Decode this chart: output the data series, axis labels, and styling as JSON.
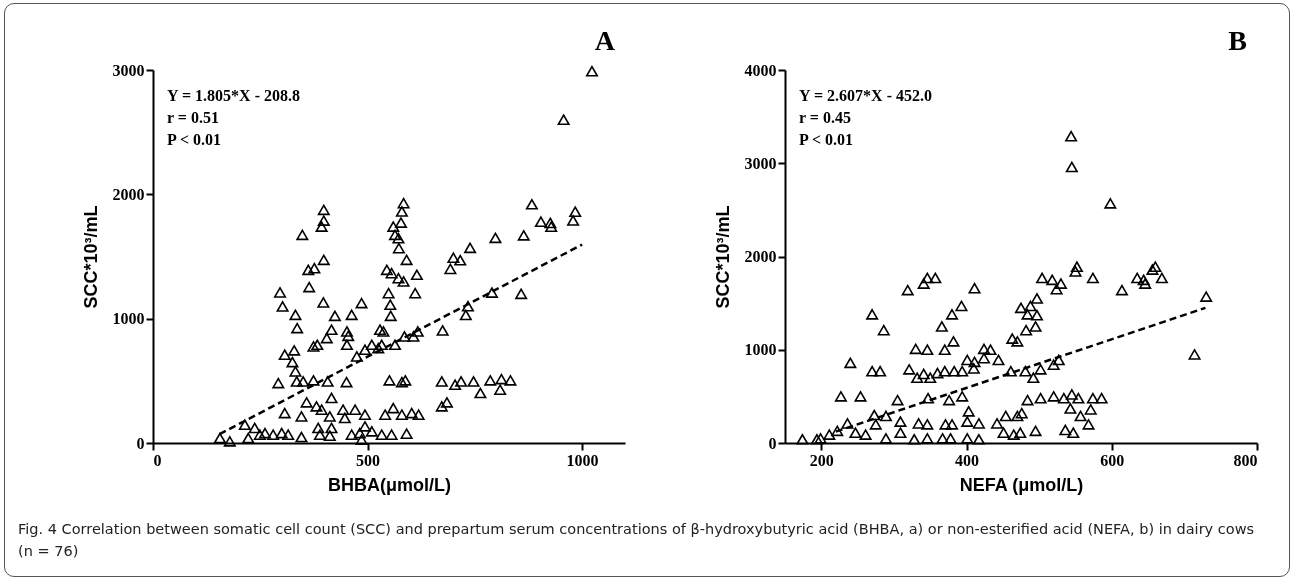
{
  "chart_data": [
    {
      "type": "scatter",
      "xlabel": "BHBA(μmol/L)",
      "ylabel": "SCC*10³/mL",
      "xlim": [
        0,
        1100
      ],
      "xticks": [
        0,
        500,
        1000
      ],
      "ylim": [
        0,
        3000
      ],
      "yticks": [
        0,
        1000,
        2000,
        3000
      ],
      "annotations": [
        "A",
        "Y = 1.805*X - 208.8",
        "r = 0.51",
        "P < 0.01",
        "Fig. 4 Correlation between somatic cell count (SCC) and prepartum serum concentrations of β-hydroxybutyric acid (BHBA, a) or non-esterified acid (NEFA, b) in dairy cows (n = 76)"
      ],
      "series": [
        {
          "type": "scatter",
          "marker": "triangle",
          "color": "#000000",
          "x": [
            1023,
            957,
            883,
            984,
            979,
            904,
            926,
            928,
            864,
            798,
            739,
            700,
            716,
            693,
            858,
            790,
            734,
            729,
            675,
            617,
            607,
            586,
            564,
            611,
            615,
            591,
            572,
            584,
            573,
            572,
            578,
            580,
            584,
            560,
            564,
            545,
            556,
            549,
            553,
            554,
            529,
            537,
            486,
            463,
            424,
            452,
            455,
            452,
            416,
            405,
            397,
            364,
            362,
            376,
            398,
            348,
            393,
            398,
            398,
            296,
            302,
            332,
            336,
            374,
            383,
            307,
            329,
            325,
            332,
            292,
            335,
            350,
            374,
            407,
            451,
            475,
            494,
            510,
            525,
            533,
            551,
            580,
            588,
            673,
            704,
            718,
            747,
            763,
            786,
            809,
            812,
            833,
            673,
            685,
            307,
            358,
            346,
            381,
            393,
            416,
            412,
            443,
            471,
            494,
            447,
            541,
            560,
            580,
            603,
            619,
            214,
            237,
            261,
            300,
            156,
            179,
            222,
            280,
            315,
            346,
            385,
            389,
            412,
            416,
            463,
            482,
            494,
            510,
            486,
            533,
            556,
            591,
            249
          ],
          "values": [
            2990,
            2600,
            1920,
            1860,
            1790,
            1780,
            1770,
            1740,
            1670,
            1650,
            1570,
            1490,
            1470,
            1400,
            1200,
            1210,
            1100,
            1030,
            905,
            897,
            857,
            857,
            790,
            1205,
            1353,
            1473,
            1326,
            1299,
            1567,
            1647,
            1773,
            1862,
            1929,
            1741,
            1674,
            1393,
            1366,
            1205,
            1112,
            1023,
            911,
            897,
            1125,
            1031,
            1023,
            897,
            862,
            790,
            911,
            844,
            1130,
            1254,
            1393,
            1406,
            1473,
            1674,
            1741,
            1789,
            1875,
            1211,
            1098,
            1031,
            924,
            777,
            790,
            710,
            745,
            651,
            576,
            482,
            495,
            495,
            504,
            495,
            490,
            696,
            750,
            790,
            763,
            790,
            504,
            490,
            504,
            495,
            469,
            495,
            495,
            402,
            504,
            429,
            514,
            504,
            295,
            327,
            241,
            327,
            214,
            295,
            268,
            362,
            214,
            268,
            268,
            228,
            201,
            228,
            281,
            228,
            241,
            228,
            147,
            121,
            80,
            80,
            40,
            13,
            40,
            67,
            67,
            48,
            121,
            67,
            59,
            121,
            67,
            80,
            134,
            94,
            27,
            67,
            67,
            75,
            67
          ]
        },
        {
          "type": "line",
          "color": "#000000",
          "line_style": "dashed",
          "x": [
            155,
            1000
          ],
          "values": [
            71,
            1596
          ]
        }
      ]
    },
    {
      "type": "scatter",
      "xlabel": "NEFA (μmol/L)",
      "ylabel": "SCC*10³/mL",
      "xlim": [
        150,
        800
      ],
      "xticks": [
        200,
        400,
        600,
        800
      ],
      "ylim": [
        0,
        4000
      ],
      "yticks": [
        0,
        1000,
        2000,
        3000,
        4000
      ],
      "annotations": [
        "B",
        "Y = 2.607*X - 452.0",
        "r = 0.45",
        "P < 0.01"
      ],
      "series": [
        {
          "type": "scatter",
          "marker": "triangle",
          "color": "#000000",
          "x": [
            544,
            545,
            598,
            730,
            714,
            660,
            656,
            669,
            635,
            644,
            646,
            614,
            574,
            552,
            550,
            530,
            518,
            504,
            524,
            497,
            488,
            475,
            484,
            497,
            495,
            482,
            463,
            470,
            411,
            393,
            380,
            366,
            382,
            370,
            346,
            341,
            357,
            319,
            270,
            286,
            240,
            270,
            281,
            321,
            330,
            346,
            332,
            341,
            350,
            360,
            370,
            383,
            394,
            401,
            410,
            411,
            424,
            424,
            433,
            444,
            461,
            481,
            492,
            502,
            520,
            527,
            227,
            254,
            305,
            347,
            376,
            394,
            484,
            502,
            520,
            534,
            545,
            554,
            574,
            586,
            543,
            557,
            571,
            568,
            536,
            547,
            495,
            470,
            476,
            454,
            442,
            417,
            403,
            401,
            380,
            371,
            346,
            334,
            309,
            309,
            289,
            273,
            275,
            236,
            222,
            211,
            199,
            174,
            194,
            247,
            261,
            289,
            328,
            346,
            378,
            401,
            417,
            451,
            465,
            474,
            367
          ],
          "values": [
            3290,
            2960,
            2570,
            1570,
            950,
            1890,
            1860,
            1770,
            1770,
            1750,
            1710,
            1640,
            1770,
            1890,
            1840,
            1710,
            1750,
            1770,
            1650,
            1550,
            1470,
            1450,
            1380,
            1370,
            1250,
            1210,
            1120,
            1090,
            1660,
            1470,
            1380,
            1250,
            1090,
            1000,
            1770,
            1710,
            1770,
            1640,
            1380,
            1210,
            860,
            770,
            770,
            790,
            1010,
            1000,
            700,
            740,
            700,
            750,
            770,
            770,
            770,
            890,
            800,
            870,
            910,
            1010,
            1000,
            890,
            770,
            770,
            700,
            790,
            840,
            890,
            500,
            500,
            460,
            480,
            460,
            500,
            460,
            480,
            500,
            480,
            520,
            480,
            480,
            480,
            370,
            290,
            360,
            200,
            140,
            110,
            130,
            290,
            320,
            290,
            210,
            210,
            340,
            230,
            200,
            200,
            200,
            210,
            230,
            110,
            290,
            300,
            200,
            210,
            130,
            90,
            50,
            40,
            40,
            110,
            90,
            50,
            40,
            50,
            50,
            50,
            40,
            110,
            90,
            110,
            50
          ]
        },
        {
          "type": "line",
          "color": "#000000",
          "line_style": "dashed",
          "x": [
            220,
            729
          ],
          "values": [
            122,
            1449
          ]
        }
      ]
    }
  ]
}
